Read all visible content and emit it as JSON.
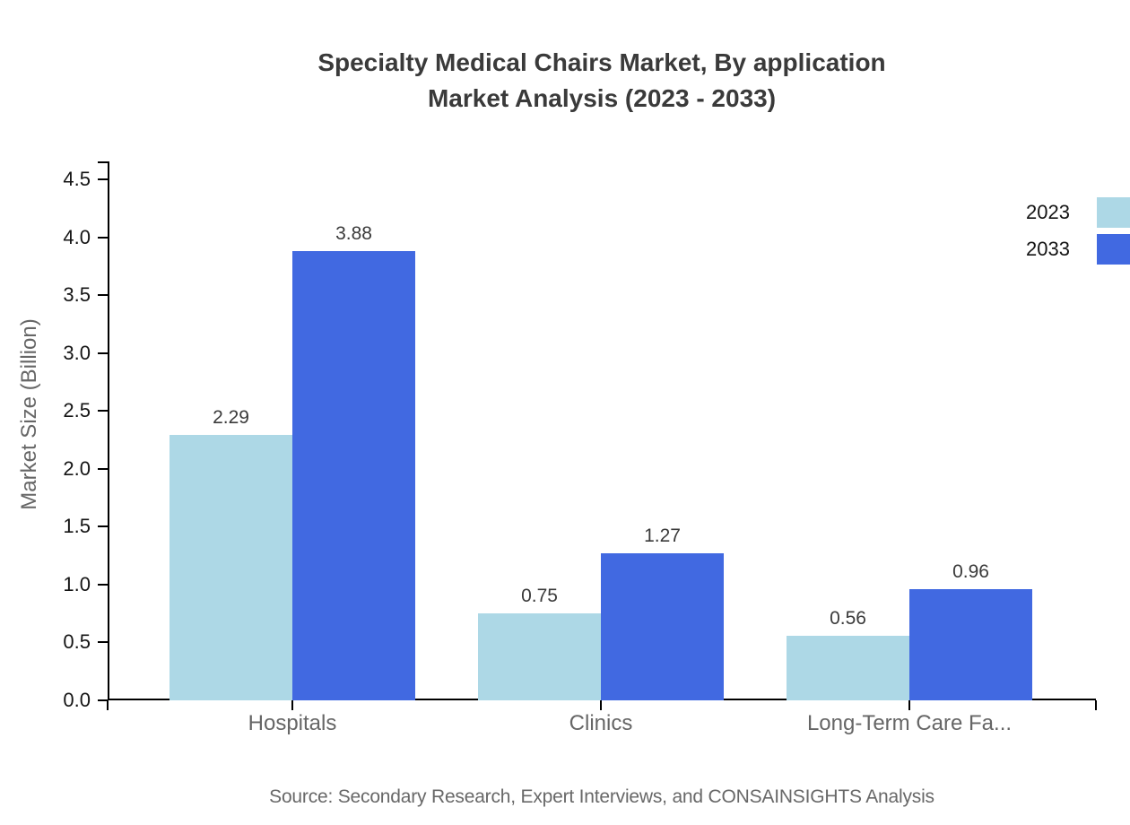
{
  "title": {
    "line1": "Specialty Medical Chairs Market, By application",
    "line2": "Market Analysis (2023 - 2033)"
  },
  "chart_data": {
    "type": "bar",
    "categories": [
      "Hospitals",
      "Clinics",
      "Long-Term Care Fa..."
    ],
    "series": [
      {
        "name": "2023",
        "color": "#add8e6",
        "values": [
          2.29,
          0.75,
          0.56
        ]
      },
      {
        "name": "2033",
        "color": "#4169e1",
        "values": [
          3.88,
          1.27,
          0.96
        ]
      }
    ],
    "value_labels": [
      [
        "2.29",
        "0.75",
        "0.56"
      ],
      [
        "3.88",
        "1.27",
        "0.96"
      ]
    ],
    "xlabel": "",
    "ylabel": "Market Size (Billion)",
    "ylim": [
      0,
      4.5
    ],
    "ytick_step": 0.5,
    "ytick_labels": [
      "0.0",
      "0.5",
      "1.0",
      "1.5",
      "2.0",
      "2.5",
      "3.0",
      "3.5",
      "4.0",
      "4.5"
    ],
    "grid": false,
    "legend_position": "top-right",
    "axis_color": "#000000"
  },
  "source": "Source: Secondary Research, Expert Interviews, and CONSAINSIGHTS Analysis"
}
